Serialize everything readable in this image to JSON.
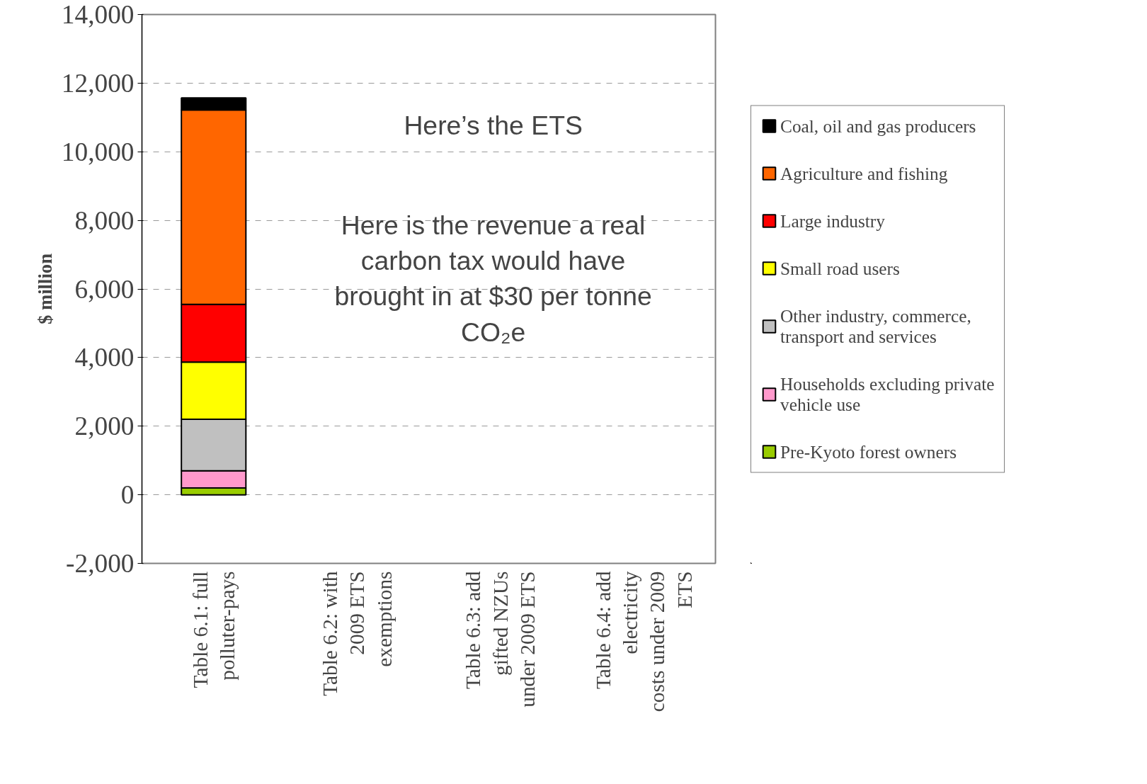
{
  "chart_data": {
    "type": "bar",
    "stacked": true,
    "ylabel": "$ million",
    "categories": [
      "Table 6.1: full polluter-pays",
      "Table 6.2: with 2009 ETS exemptions",
      "Table 6.3: add gifted NZUs under 2009 ETS",
      "Table 6.4: add electricity costs under 2009 ETS"
    ],
    "series": [
      {
        "name": "Pre-Kyoto forest owners",
        "color": "#99cc00",
        "values": [
          200,
          null,
          null,
          null
        ]
      },
      {
        "name": "Households excluding private vehicle use",
        "color": "#ff99cc",
        "values": [
          500,
          null,
          null,
          null
        ]
      },
      {
        "name": "Other industry, commerce, transport and services",
        "color": "#c0c0c0",
        "values": [
          1500,
          null,
          null,
          null
        ]
      },
      {
        "name": "Small road users",
        "color": "#ffff00",
        "values": [
          1670,
          null,
          null,
          null
        ]
      },
      {
        "name": "Large industry",
        "color": "#ff0000",
        "values": [
          1680,
          null,
          null,
          null
        ]
      },
      {
        "name": "Agriculture and fishing",
        "color": "#ff6600",
        "values": [
          5670,
          null,
          null,
          null
        ]
      },
      {
        "name": "Coal, oil and gas producers",
        "color": "#000000",
        "values": [
          350,
          null,
          null,
          null
        ]
      }
    ],
    "ylim": [
      -2000,
      14000
    ],
    "yticks": [
      {
        "value": -2000,
        "label": "-2,000"
      },
      0,
      {
        "value": 2000,
        "label": "2,000"
      },
      {
        "value": 4000,
        "label": "4,000"
      },
      {
        "value": 6000,
        "label": "6,000"
      },
      {
        "value": 8000,
        "label": "8,000"
      },
      {
        "value": 10000,
        "label": "10,000"
      },
      {
        "value": 12000,
        "label": "12,000"
      },
      {
        "value": 14000,
        "label": "14,000"
      }
    ],
    "grid": "y",
    "legend": "right",
    "annotations": [
      "Here’s the ETS",
      "Here is the revenue a real carbon tax would have brought in at $30 per tonne CO₂e"
    ]
  }
}
